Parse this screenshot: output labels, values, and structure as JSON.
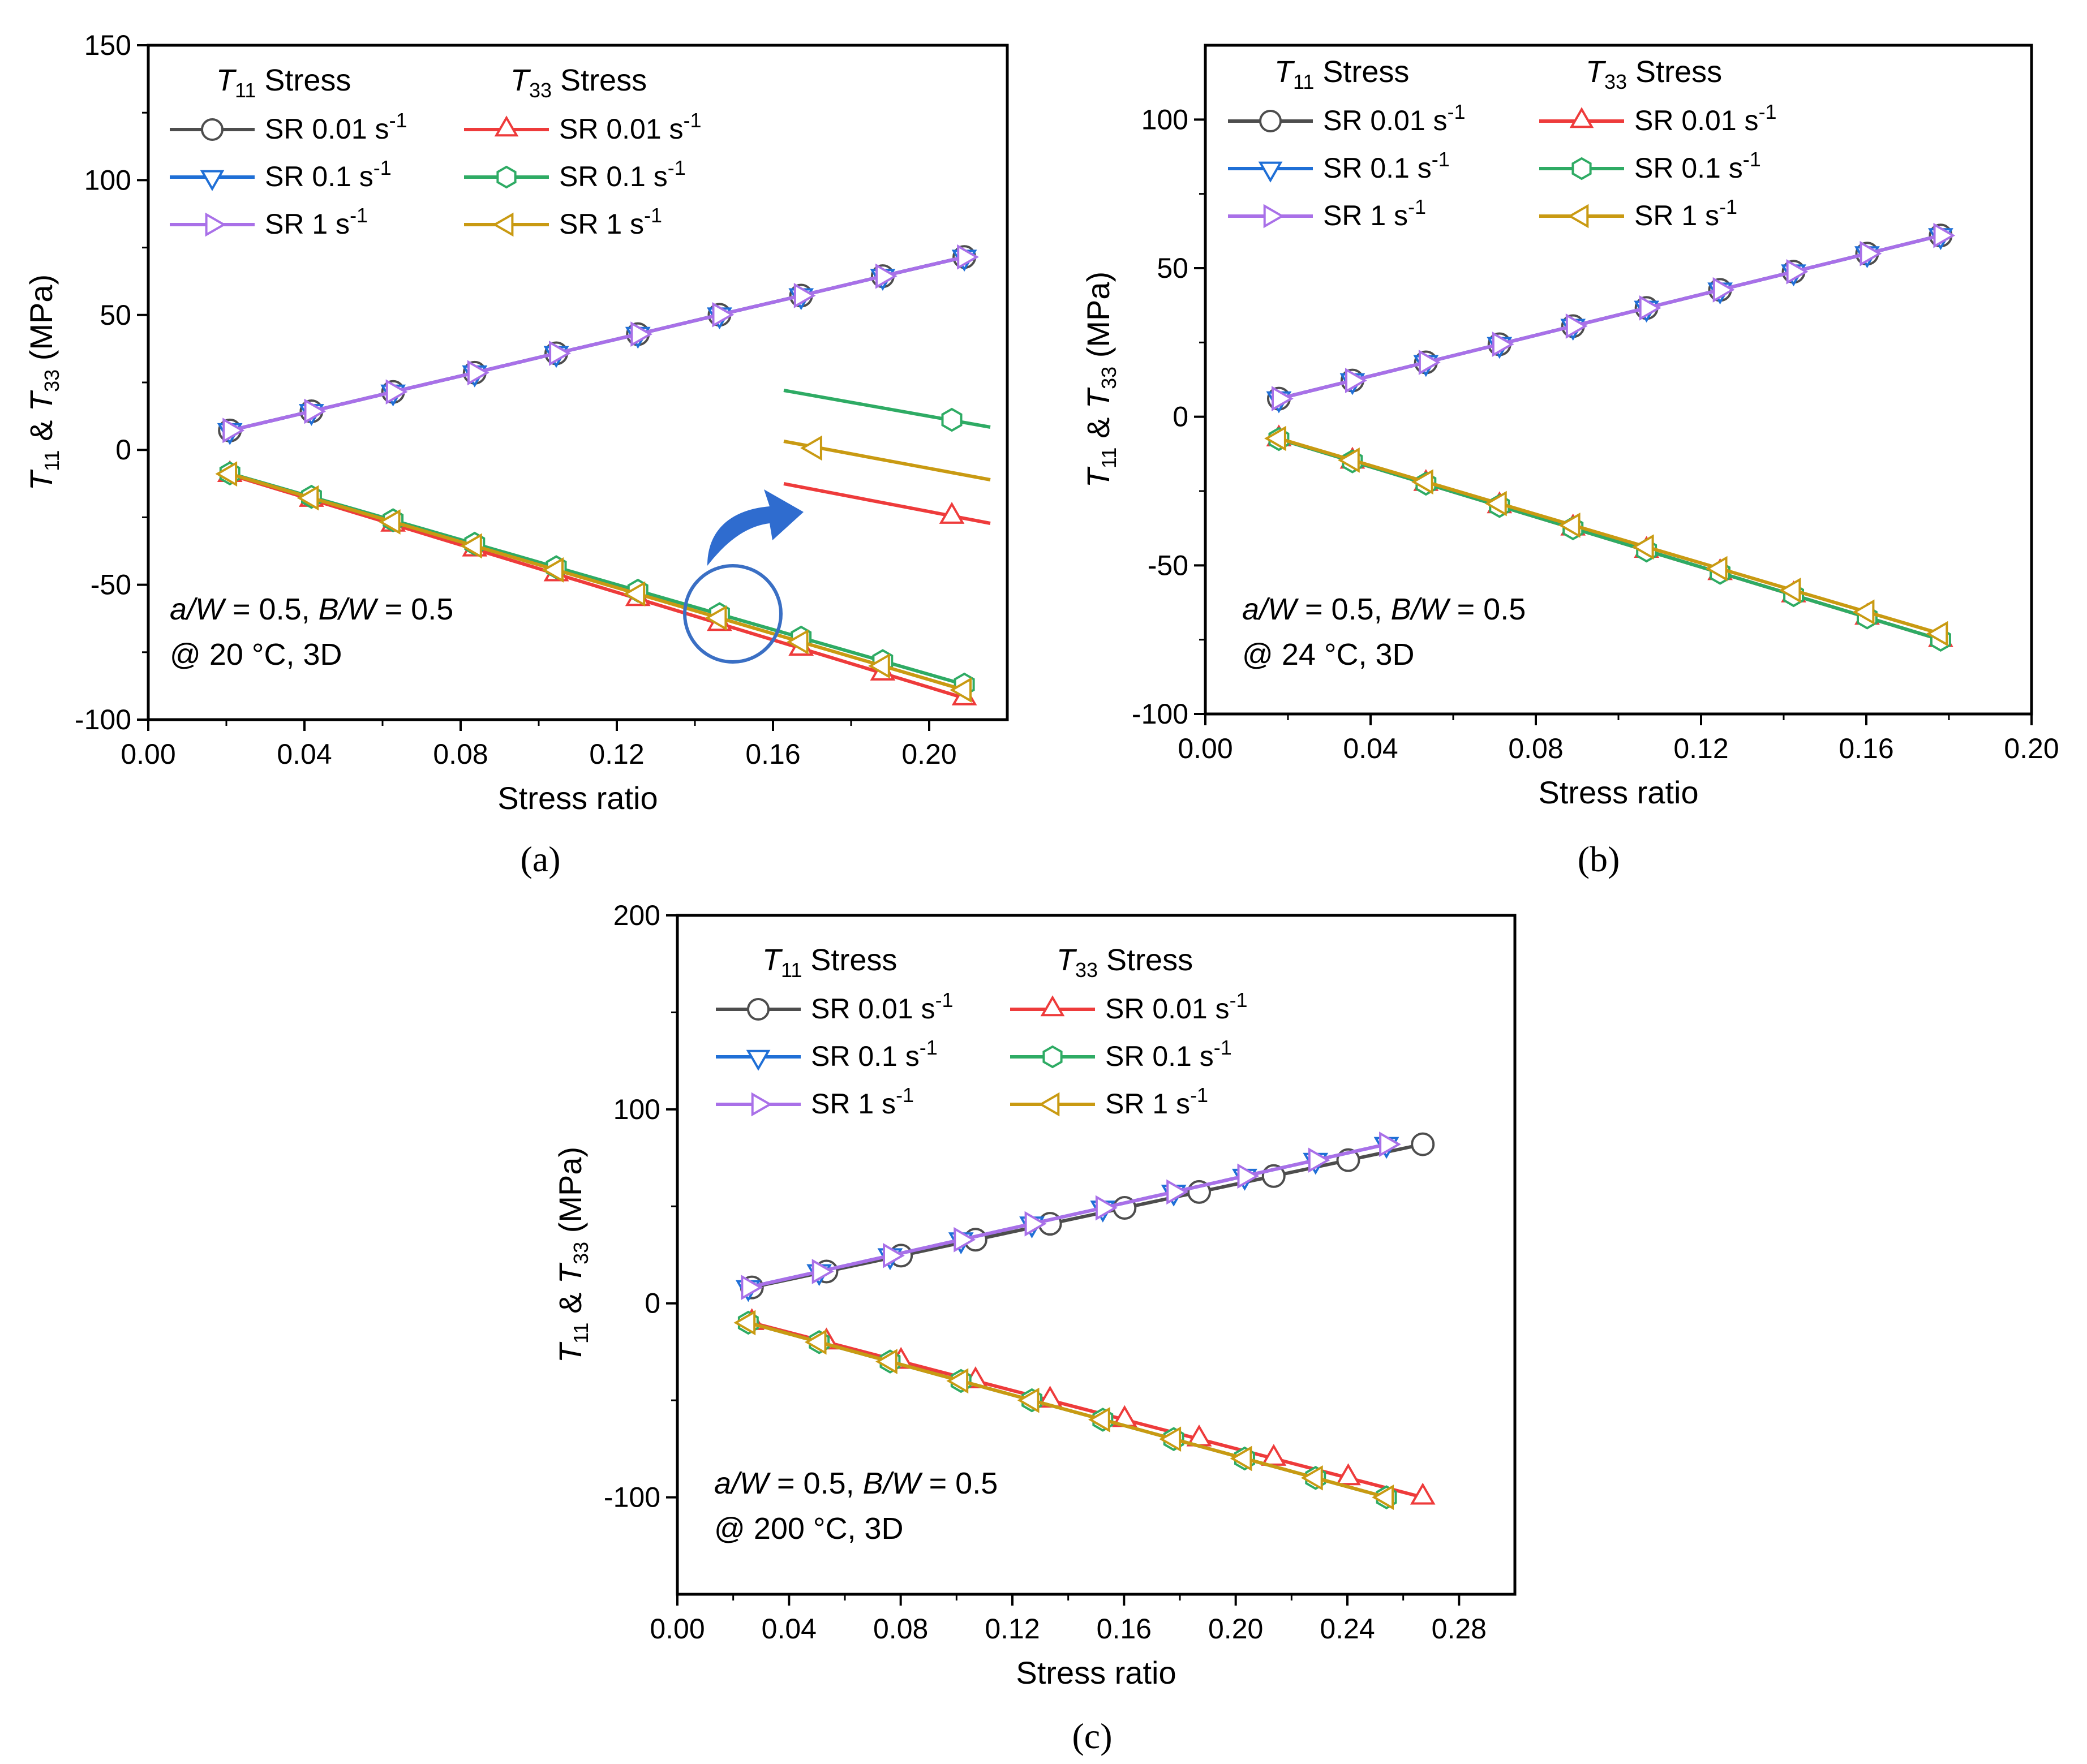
{
  "series_styles": [
    {
      "key": "t11_001",
      "color": "#4d4d4d",
      "marker": "circle"
    },
    {
      "key": "t11_01",
      "color": "#1f6fd6",
      "marker": "tri-down"
    },
    {
      "key": "t11_1",
      "color": "#a970e8",
      "marker": "tri-right"
    },
    {
      "key": "t33_001",
      "color": "#ee3b3b",
      "marker": "tri-up"
    },
    {
      "key": "t33_01",
      "color": "#2eab64",
      "marker": "hexagon"
    },
    {
      "key": "t33_1",
      "color": "#c99a12",
      "marker": "tri-left"
    }
  ],
  "chart_data": [
    {
      "type": "line",
      "panel_label": "(a)",
      "xlabel": "Stress ratio",
      "ylabel": "T11 & T33 (MPa)",
      "xlim": [
        0,
        0.22
      ],
      "ylim": [
        -100,
        150
      ],
      "xticks": [
        "0.00",
        "0.04",
        "0.08",
        "0.12",
        "0.16",
        "0.20"
      ],
      "yticks": [
        "-100",
        "-50",
        "0",
        "50",
        "100",
        "150"
      ],
      "annotation": {
        "line1": "a/W = 0.5, B/W = 0.5",
        "line2": "@ 20 °C, 3D"
      },
      "legend": {
        "t11_header": "T11 Stress",
        "t33_header": "T33 Stress",
        "t11_labels": [
          "SR 0.01 s-1",
          "SR 0.1 s-1",
          "SR 1 s-1"
        ],
        "t33_labels": [
          "SR 0.01 s-1",
          "SR 0.1 s-1",
          "SR 1 s-1"
        ]
      },
      "x": [
        0.0209,
        0.0418,
        0.0627,
        0.0836,
        0.1045,
        0.1254,
        0.1463,
        0.1672,
        0.1881,
        0.209
      ],
      "series": [
        {
          "name": "T11 SR 0.01 s-1",
          "values": [
            7.2,
            14.3,
            21.5,
            28.6,
            35.8,
            42.9,
            50.1,
            57.2,
            64.4,
            71.5
          ]
        },
        {
          "name": "T11 SR 0.1 s-1",
          "values": [
            7.2,
            14.3,
            21.5,
            28.6,
            35.8,
            42.9,
            50.1,
            57.2,
            64.4,
            71.5
          ]
        },
        {
          "name": "T11 SR 1 s-1",
          "values": [
            7.2,
            14.3,
            21.5,
            28.6,
            35.8,
            42.9,
            50.1,
            57.2,
            64.4,
            71.5
          ]
        },
        {
          "name": "T33 SR 0.01 s-1",
          "values": [
            -9.2,
            -18.4,
            -27.6,
            -36.8,
            -46.0,
            -55.2,
            -64.4,
            -73.6,
            -82.8,
            -92.0
          ]
        },
        {
          "name": "T33 SR 0.1 s-1",
          "values": [
            -8.7,
            -17.4,
            -26.1,
            -34.8,
            -43.5,
            -52.2,
            -60.9,
            -69.6,
            -78.3,
            -87.0
          ]
        },
        {
          "name": "T33 SR 1 s-1",
          "values": [
            -8.9,
            -17.8,
            -26.7,
            -35.6,
            -44.5,
            -53.4,
            -62.3,
            -71.2,
            -80.1,
            -89.0
          ]
        }
      ],
      "inset": {
        "note": "zoomed view near stress ratio 0.14 – 0.15"
      }
    },
    {
      "type": "line",
      "panel_label": "(b)",
      "xlabel": "Stress ratio",
      "ylabel": "T11 & T33 (MPa)",
      "xlim": [
        0,
        0.2
      ],
      "ylim": [
        -100,
        125
      ],
      "xticks": [
        "0.00",
        "0.04",
        "0.08",
        "0.12",
        "0.16",
        "0.20"
      ],
      "yticks": [
        "-100",
        "-50",
        "0",
        "50",
        "100"
      ],
      "annotation": {
        "line1": "a/W = 0.5, B/W = 0.5",
        "line2": "@ 24 °C, 3D"
      },
      "legend": {
        "t11_header": "T11 Stress",
        "t33_header": "T33 Stress",
        "t11_labels": [
          "SR 0.01 s-1",
          "SR 0.1 s-1",
          "SR 1 s-1"
        ],
        "t33_labels": [
          "SR 0.01 s-1",
          "SR 0.1 s-1",
          "SR 1 s-1"
        ]
      },
      "x": [
        0.0178,
        0.0356,
        0.0534,
        0.0712,
        0.089,
        0.1068,
        0.1246,
        0.1424,
        0.1602,
        0.178
      ],
      "series": [
        {
          "name": "T11 SR 0.01 s-1",
          "values": [
            6.1,
            12.2,
            18.3,
            24.4,
            30.5,
            36.6,
            42.7,
            48.8,
            54.9,
            61.0
          ]
        },
        {
          "name": "T11 SR 0.1 s-1",
          "values": [
            6.1,
            12.2,
            18.3,
            24.4,
            30.5,
            36.6,
            42.7,
            48.8,
            54.9,
            61.0
          ]
        },
        {
          "name": "T11 SR 1 s-1",
          "values": [
            6.1,
            12.2,
            18.3,
            24.4,
            30.5,
            36.6,
            42.7,
            48.8,
            54.9,
            61.0
          ]
        },
        {
          "name": "T33 SR 0.01 s-1",
          "values": [
            -7.5,
            -15.0,
            -22.5,
            -30.0,
            -37.5,
            -45.0,
            -52.5,
            -60.0,
            -67.5,
            -75.0
          ]
        },
        {
          "name": "T33 SR 0.1 s-1",
          "values": [
            -7.5,
            -15.0,
            -22.5,
            -30.0,
            -37.5,
            -45.0,
            -52.5,
            -60.0,
            -67.5,
            -75.0
          ]
        },
        {
          "name": "T33 SR 1 s-1",
          "values": [
            -7.3,
            -14.6,
            -21.9,
            -29.2,
            -36.5,
            -43.8,
            -51.1,
            -58.4,
            -65.7,
            -73.0
          ]
        }
      ]
    },
    {
      "type": "line",
      "panel_label": "(c)",
      "xlabel": "Stress ratio",
      "ylabel": "T11 & T33 (MPa)",
      "xlim": [
        0,
        0.3
      ],
      "ylim": [
        -150,
        200
      ],
      "xticks": [
        "0.00",
        "0.04",
        "0.08",
        "0.12",
        "0.16",
        "0.20",
        "0.24",
        "0.28"
      ],
      "yticks": [
        "-100",
        "0",
        "100",
        "200"
      ],
      "annotation": {
        "line1": "a/W = 0.5, B/W = 0.5",
        "line2": "@ 200 °C, 3D"
      },
      "legend": {
        "t11_header": "T11 Stress",
        "t33_header": "T33 Stress",
        "t11_labels": [
          "SR 0.01 s-1",
          "SR 0.1 s-1",
          "SR 1 s-1"
        ],
        "t33_labels": [
          "SR 0.01 s-1",
          "SR 0.1 s-1",
          "SR 1 s-1"
        ]
      },
      "x_sets": {
        "slow": [
          0.0267,
          0.0534,
          0.0801,
          0.1068,
          0.1335,
          0.1602,
          0.1869,
          0.2136,
          0.2403,
          0.267
        ],
        "fast": [
          0.0254,
          0.0508,
          0.0762,
          0.1016,
          0.127,
          0.1524,
          0.1778,
          0.2032,
          0.2286,
          0.254
        ]
      },
      "series": [
        {
          "name": "T11 SR 0.01 s-1",
          "xset": "slow",
          "values": [
            8.2,
            16.4,
            24.6,
            32.8,
            41.0,
            49.2,
            57.4,
            65.6,
            73.8,
            82.0
          ]
        },
        {
          "name": "T11 SR 0.1 s-1",
          "xset": "fast",
          "values": [
            8.2,
            16.4,
            24.6,
            32.8,
            41.0,
            49.2,
            57.4,
            65.6,
            73.8,
            82.0
          ]
        },
        {
          "name": "T11 SR 1 s-1",
          "xset": "fast",
          "values": [
            8.2,
            16.4,
            24.6,
            32.8,
            41.0,
            49.2,
            57.4,
            65.6,
            73.8,
            82.0
          ]
        },
        {
          "name": "T33 SR 0.01 s-1",
          "xset": "slow",
          "values": [
            -10,
            -20,
            -30,
            -40,
            -50,
            -60,
            -70,
            -80,
            -90,
            -100
          ]
        },
        {
          "name": "T33 SR 0.1 s-1",
          "xset": "fast",
          "values": [
            -10,
            -20,
            -30,
            -40,
            -50,
            -60,
            -70,
            -80,
            -90,
            -100
          ]
        },
        {
          "name": "T33 SR 1 s-1",
          "xset": "fast",
          "values": [
            -10,
            -20,
            -30,
            -40,
            -50,
            -60,
            -70,
            -80,
            -90,
            -100
          ]
        }
      ]
    }
  ]
}
